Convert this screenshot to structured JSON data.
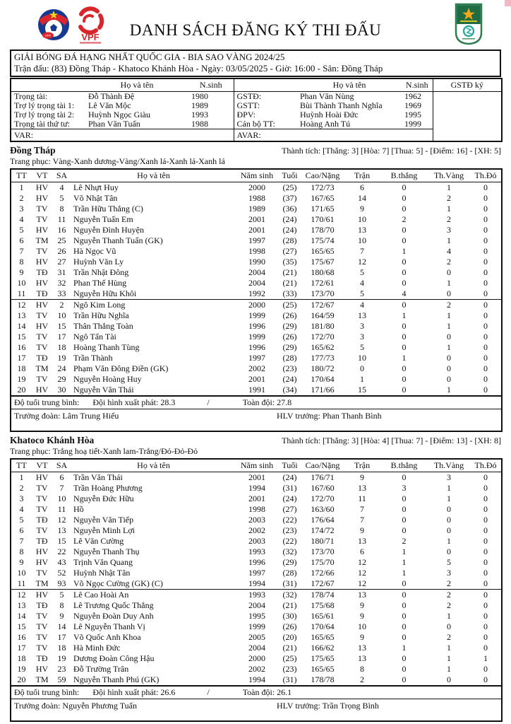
{
  "header": {
    "title": "DANH SÁCH ĐĂNG KÝ THI ĐẤU",
    "vff_label": "VFF",
    "vpf_label": "VPF"
  },
  "match_box": {
    "competition": "GIẢI BÓNG ĐÁ HẠNG NHẤT QUỐC GIA - BIA SAO VÀNG 2024/25",
    "match_info": "Trận đấu: (83) Đồng Tháp - Khatoco Khánh Hòa - Ngày: 03/05/2025 - Giờ: 16:00 - Sân: Đồng Tháp"
  },
  "officials": {
    "col_name": "Họ và tên",
    "col_born": "N.sinh",
    "col_sign": "GSTĐ ký",
    "left": [
      [
        "Trọng tài:",
        "Đỗ Thành Đệ",
        "1980"
      ],
      [
        "Trợ lý trọng tài 1:",
        "Lê Văn Mộc",
        "1989"
      ],
      [
        "Trợ lý trọng tài 2:",
        "Huỳnh Ngọc Giàu",
        "1993"
      ],
      [
        "Trọng tài thứ tư:",
        "Phan Văn Tuấn",
        "1988"
      ]
    ],
    "right": [
      [
        "GSTĐ:",
        "Phan Văn Nùng",
        "1962"
      ],
      [
        "GSTT:",
        "Bùi Thành Thanh Nghĩa",
        "1969"
      ],
      [
        "ĐPV:",
        "Huỳnh Hoài Đức",
        "1995"
      ],
      [
        "Cán bộ TT:",
        "Hoàng Anh Tú",
        "1999"
      ]
    ],
    "var_label": "VAR:",
    "avar_label": "AVAR:"
  },
  "player_columns": [
    "TT",
    "VT",
    "SA",
    "Họ và tên",
    "Năm sinh",
    "Tuổi",
    "Cao/Nặng",
    "Trận",
    "B.thắng",
    "Th.Vàng",
    "Th.Đỏ"
  ],
  "teams": [
    {
      "name": "Đồng Tháp",
      "record": "Thành tích: [Thắng: 3] [Hòa: 7] [Thua: 5] - [Điểm: 16] - [XH: 5]",
      "kit": "Trang phục: Vàng-Xanh dương-Vàng/Xanh lá-Xanh lá-Xanh lá",
      "starters": [
        [
          "1",
          "HV",
          "4",
          "Lê Nhựt Huy",
          "2000",
          "(25)",
          "172/73",
          "6",
          "0",
          "1",
          "0"
        ],
        [
          "2",
          "HV",
          "5",
          "Võ Nhật Tân",
          "1988",
          "(37)",
          "167/65",
          "14",
          "0",
          "2",
          "0"
        ],
        [
          "3",
          "TV",
          "8",
          "Trần Hữu Thắng (C)",
          "1989",
          "(36)",
          "171/65",
          "9",
          "0",
          "1",
          "0"
        ],
        [
          "4",
          "TV",
          "11",
          "Nguyễn Tuấn Em",
          "2001",
          "(24)",
          "170/61",
          "10",
          "2",
          "2",
          "0"
        ],
        [
          "5",
          "HV",
          "16",
          "Nguyễn Đình Huyện",
          "2001",
          "(24)",
          "178/70",
          "13",
          "0",
          "3",
          "0"
        ],
        [
          "6",
          "TM",
          "25",
          "Nguyễn Thanh Tuấn (GK)",
          "1997",
          "(28)",
          "175/74",
          "10",
          "0",
          "1",
          "0"
        ],
        [
          "7",
          "TV",
          "26",
          "Hà Ngọc Vũ",
          "1998",
          "(27)",
          "165/65",
          "7",
          "1",
          "4",
          "0"
        ],
        [
          "8",
          "HV",
          "27",
          "Huỳnh Văn Ly",
          "1990",
          "(35)",
          "175/67",
          "12",
          "0",
          "2",
          "0"
        ],
        [
          "9",
          "TĐ",
          "31",
          "Trần Nhật Đông",
          "2004",
          "(21)",
          "180/68",
          "5",
          "0",
          "0",
          "0"
        ],
        [
          "10",
          "HV",
          "32",
          "Phan Thế Hùng",
          "2004",
          "(21)",
          "172/61",
          "4",
          "0",
          "1",
          "0"
        ],
        [
          "11",
          "TĐ",
          "33",
          "Nguyễn Hữu Khôi",
          "1992",
          "(33)",
          "173/70",
          "5",
          "4",
          "0",
          "0"
        ]
      ],
      "substitutes": [
        [
          "12",
          "HV",
          "2",
          "Ngô Kim Long",
          "2000",
          "(25)",
          "172/67",
          "4",
          "0",
          "2",
          "0"
        ],
        [
          "13",
          "TV",
          "10",
          "Trần Hữu Nghĩa",
          "1999",
          "(26)",
          "164/59",
          "13",
          "1",
          "1",
          "0"
        ],
        [
          "14",
          "HV",
          "15",
          "Thân Thắng Toàn",
          "1996",
          "(29)",
          "181/80",
          "3",
          "0",
          "1",
          "0"
        ],
        [
          "15",
          "TV",
          "17",
          "Ngô Tấn Tài",
          "1999",
          "(26)",
          "172/70",
          "3",
          "0",
          "0",
          "0"
        ],
        [
          "16",
          "TV",
          "18",
          "Hoàng Thanh Tùng",
          "1996",
          "(29)",
          "165/62",
          "5",
          "0",
          "1",
          "0"
        ],
        [
          "17",
          "TĐ",
          "19",
          "Trần Thành",
          "1997",
          "(28)",
          "177/73",
          "10",
          "1",
          "0",
          "0"
        ],
        [
          "18",
          "TM",
          "24",
          "Phạm Văn Đông Điền (GK)",
          "2002",
          "(23)",
          "180/72",
          "0",
          "0",
          "0",
          "0"
        ],
        [
          "19",
          "TV",
          "29",
          "Nguyễn Hoàng Huy",
          "2001",
          "(24)",
          "170/64",
          "1",
          "0",
          "0",
          "0"
        ],
        [
          "20",
          "HV",
          "30",
          "Nguyễn Văn Thái",
          "1991",
          "(34)",
          "171/66",
          "15",
          "0",
          "1",
          "0"
        ]
      ],
      "avg_age_label": "Độ tuổi trung bình:",
      "avg_age_start": "Đội hình xuất phát: 28.3",
      "avg_age_sep": "/",
      "avg_age_total": "Toàn đội: 27.8",
      "manager": "Trưởng đoàn: Lâm Trung Hiếu",
      "head_coach": "HLV trưởng: Phan Thanh Bình"
    },
    {
      "name": "Khatoco Khánh Hòa",
      "record": "Thành tích: [Thắng: 3] [Hòa: 4] [Thua: 7] - [Điểm: 13] - [XH: 8]",
      "kit": "Trang phục: Trắng hoạ tiết-Xanh lam-Trắng/Đỏ-Đỏ-Đỏ",
      "starters": [
        [
          "1",
          "HV",
          "6",
          "Trần Văn Thái",
          "2001",
          "(24)",
          "176/71",
          "9",
          "0",
          "3",
          "0"
        ],
        [
          "2",
          "TV",
          "7",
          "Trần Hoàng Phương",
          "1994",
          "(31)",
          "167/60",
          "13",
          "3",
          "1",
          "0"
        ],
        [
          "3",
          "TV",
          "10",
          "Nguyễn Đức Hữu",
          "2001",
          "(24)",
          "172/70",
          "11",
          "0",
          "1",
          "0"
        ],
        [
          "4",
          "TV",
          "11",
          "Hồ",
          "1998",
          "(27)",
          "163/60",
          "7",
          "0",
          "0",
          "0"
        ],
        [
          "5",
          "TĐ",
          "12",
          "Nguyễn Văn Tiếp",
          "2003",
          "(22)",
          "176/64",
          "7",
          "0",
          "0",
          "0"
        ],
        [
          "6",
          "TV",
          "13",
          "Nguyễn Minh Lợi",
          "2002",
          "(23)",
          "174/72",
          "9",
          "0",
          "0",
          "0"
        ],
        [
          "7",
          "TĐ",
          "15",
          "Lê Văn Cường",
          "2003",
          "(22)",
          "180/71",
          "13",
          "2",
          "1",
          "0"
        ],
        [
          "8",
          "HV",
          "22",
          "Nguyễn Thanh Thụ",
          "1993",
          "(32)",
          "173/70",
          "6",
          "1",
          "0",
          "0"
        ],
        [
          "9",
          "HV",
          "43",
          "Trịnh Văn Quang",
          "1996",
          "(29)",
          "175/70",
          "12",
          "1",
          "5",
          "0"
        ],
        [
          "10",
          "TV",
          "52",
          "Huỳnh Nhật Tân",
          "1997",
          "(28)",
          "172/66",
          "12",
          "1",
          "3",
          "0"
        ],
        [
          "11",
          "TM",
          "93",
          "Võ Ngọc Cường (GK) (C)",
          "1994",
          "(31)",
          "172/67",
          "12",
          "0",
          "2",
          "0"
        ]
      ],
      "substitutes": [
        [
          "12",
          "HV",
          "5",
          "Lê Cao Hoài An",
          "1993",
          "(32)",
          "178/74",
          "13",
          "0",
          "2",
          "0"
        ],
        [
          "13",
          "TĐ",
          "8",
          "Lê Trương Quốc Thắng",
          "2004",
          "(21)",
          "175/68",
          "9",
          "0",
          "2",
          "0"
        ],
        [
          "14",
          "TV",
          "9",
          "Nguyễn Đoàn Duy Anh",
          "1995",
          "(30)",
          "165/61",
          "9",
          "0",
          "1",
          "0"
        ],
        [
          "15",
          "TV",
          "14",
          "Lê Nguyễn Thanh Vị",
          "1999",
          "(26)",
          "170/64",
          "10",
          "0",
          "0",
          "0"
        ],
        [
          "16",
          "TV",
          "17",
          "Võ Quốc Anh Khoa",
          "2005",
          "(20)",
          "165/65",
          "9",
          "0",
          "2",
          "0"
        ],
        [
          "17",
          "TV",
          "18",
          "Hà Minh Đức",
          "2004",
          "(21)",
          "166/62",
          "13",
          "1",
          "1",
          "0"
        ],
        [
          "18",
          "TĐ",
          "19",
          "Dương Đoàn Công Hậu",
          "2000",
          "(25)",
          "175/65",
          "13",
          "0",
          "1",
          "1"
        ],
        [
          "19",
          "HV",
          "23",
          "Đỗ Trường Trân",
          "2002",
          "(23)",
          "165/65",
          "8",
          "0",
          "1",
          "0"
        ],
        [
          "20",
          "TM",
          "59",
          "Nguyễn Thanh Phú (GK)",
          "1994",
          "(31)",
          "178/78",
          "2",
          "0",
          "0",
          "0"
        ]
      ],
      "avg_age_label": "Độ tuổi trung bình:",
      "avg_age_start": "Đội hình xuất phát: 26.6",
      "avg_age_sep": "/",
      "avg_age_total": "Toàn đội: 26.1",
      "manager": "Trưởng đoàn: Nguyễn Phương Tuấn",
      "head_coach": "HLV trưởng: Trần Trọng Bình"
    }
  ]
}
